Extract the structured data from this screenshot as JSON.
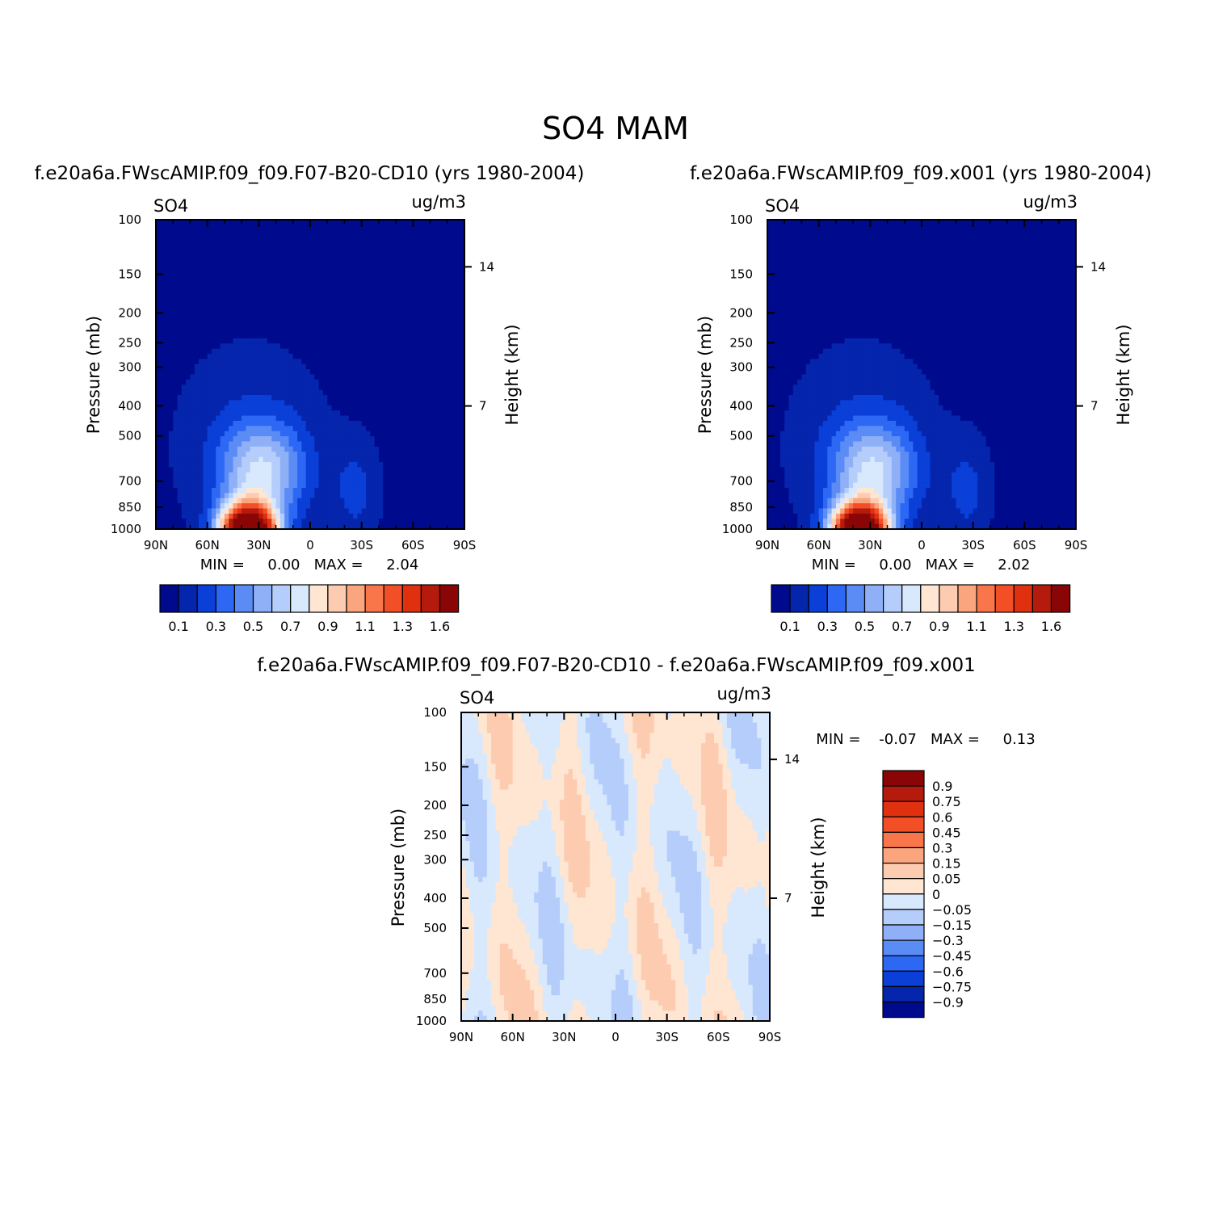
{
  "figure": {
    "title": "SO4  MAM"
  },
  "panels": [
    {
      "id": "case1",
      "subtitle": "f.e20a6a.FWscAMIP.f09_f09.F07-B20-CD10 (yrs 1980-2004)",
      "var_label": "SO4",
      "units_label": "ug/m3",
      "ylabel": "Pressure (mb)",
      "ylabel_right": "Height (km)",
      "minmax": "MIN =     0.00   MAX =     2.04"
    },
    {
      "id": "case2",
      "subtitle": "f.e20a6a.FWscAMIP.f09_f09.x001 (yrs 1980-2004)",
      "var_label": "SO4",
      "units_label": "ug/m3",
      "ylabel": "Pressure (mb)",
      "ylabel_right": "Height (km)",
      "minmax": "MIN =     0.00   MAX =     2.02"
    },
    {
      "id": "diff",
      "subtitle": "f.e20a6a.FWscAMIP.f09_f09.F07-B20-CD10 - f.e20a6a.FWscAMIP.f09_f09.x001",
      "var_label": "SO4",
      "units_label": "ug/m3",
      "ylabel": "Pressure (mb)",
      "ylabel_right": "Height (km)",
      "minmax": "MIN =    -0.07   MAX =     0.13"
    }
  ],
  "chart_data": [
    {
      "type": "heatmap",
      "title": "f.e20a6a.FWscAMIP.f09_f09.F07-B20-CD10 (yrs 1980-2004)",
      "xlabel": "",
      "ylabel": "Pressure (mb)",
      "ylabel_right": "Height (km)",
      "x_ticks": [
        "90N",
        "60N",
        "30N",
        "0",
        "30S",
        "60S",
        "90S"
      ],
      "x_values": [
        90,
        60,
        30,
        0,
        -30,
        -60,
        -90
      ],
      "y_ticks": [
        100,
        150,
        200,
        250,
        300,
        400,
        500,
        700,
        850,
        1000
      ],
      "y_scale": "log",
      "y_range": [
        100,
        1000
      ],
      "y_right_ticks": [
        14,
        7
      ],
      "y_right_tick_pressures": [
        142,
        400
      ],
      "contour_levels": [
        0.1,
        0.2,
        0.3,
        0.4,
        0.5,
        0.6,
        0.7,
        0.8,
        0.9,
        1.0,
        1.1,
        1.2,
        1.3,
        1.4,
        1.6
      ],
      "colorbar_labels": [
        "0.1",
        "0.3",
        "0.5",
        "0.7",
        "0.9",
        "1.1",
        "1.3",
        "1.6"
      ],
      "colors": [
        "#000a8c",
        "#0525ad",
        "#0a3fd8",
        "#2d68f5",
        "#5b8cf5",
        "#8fb0f7",
        "#b5cdfa",
        "#d8e8fd",
        "#fee6d2",
        "#fdcbb0",
        "#fba57e",
        "#f8764a",
        "#f24f27",
        "#df3010",
        "#b51b0c",
        "#8a0606"
      ],
      "min": 0.0,
      "max": 2.04,
      "max_location": {
        "lat": 36,
        "pressure_mb": 930
      }
    },
    {
      "type": "heatmap",
      "title": "f.e20a6a.FWscAMIP.f09_f09.x001 (yrs 1980-2004)",
      "xlabel": "",
      "ylabel": "Pressure (mb)",
      "ylabel_right": "Height (km)",
      "x_ticks": [
        "90N",
        "60N",
        "30N",
        "0",
        "30S",
        "60S",
        "90S"
      ],
      "x_values": [
        90,
        60,
        30,
        0,
        -30,
        -60,
        -90
      ],
      "y_ticks": [
        100,
        150,
        200,
        250,
        300,
        400,
        500,
        700,
        850,
        1000
      ],
      "y_scale": "log",
      "y_range": [
        100,
        1000
      ],
      "y_right_ticks": [
        14,
        7
      ],
      "y_right_tick_pressures": [
        142,
        400
      ],
      "contour_levels": [
        0.1,
        0.2,
        0.3,
        0.4,
        0.5,
        0.6,
        0.7,
        0.8,
        0.9,
        1.0,
        1.1,
        1.2,
        1.3,
        1.4,
        1.6
      ],
      "colorbar_labels": [
        "0.1",
        "0.3",
        "0.5",
        "0.7",
        "0.9",
        "1.1",
        "1.3",
        "1.6"
      ],
      "colors": [
        "#000a8c",
        "#0525ad",
        "#0a3fd8",
        "#2d68f5",
        "#5b8cf5",
        "#8fb0f7",
        "#b5cdfa",
        "#d8e8fd",
        "#fee6d2",
        "#fdcbb0",
        "#fba57e",
        "#f8764a",
        "#f24f27",
        "#df3010",
        "#b51b0c",
        "#8a0606"
      ],
      "min": 0.0,
      "max": 2.02,
      "max_location": {
        "lat": 36,
        "pressure_mb": 930
      }
    },
    {
      "type": "heatmap",
      "title": "f.e20a6a.FWscAMIP.f09_f09.F07-B20-CD10 - f.e20a6a.FWscAMIP.f09_f09.x001",
      "xlabel": "",
      "ylabel": "Pressure (mb)",
      "ylabel_right": "Height (km)",
      "x_ticks": [
        "90N",
        "60N",
        "30N",
        "0",
        "30S",
        "60S",
        "90S"
      ],
      "x_values": [
        90,
        60,
        30,
        0,
        -30,
        -60,
        -90
      ],
      "y_ticks": [
        100,
        150,
        200,
        250,
        300,
        400,
        500,
        700,
        850,
        1000
      ],
      "y_scale": "log",
      "y_range": [
        100,
        1000
      ],
      "y_right_ticks": [
        14,
        7
      ],
      "y_right_tick_pressures": [
        142,
        400
      ],
      "contour_levels": [
        -0.9,
        -0.75,
        -0.6,
        -0.45,
        -0.3,
        -0.15,
        -0.05,
        0,
        0.05,
        0.15,
        0.3,
        0.45,
        0.6,
        0.75,
        0.9
      ],
      "colorbar_labels": [
        "0.9",
        "0.75",
        "0.6",
        "0.45",
        "0.3",
        "0.15",
        "0.05",
        "0",
        "-0.05",
        "-0.15",
        "-0.3",
        "-0.45",
        "-0.6",
        "-0.75",
        "-0.9"
      ],
      "colors": [
        "#000a8c",
        "#0525ad",
        "#0a3fd8",
        "#2d68f5",
        "#5b8cf5",
        "#8fb0f7",
        "#b5cdfa",
        "#d8e8fd",
        "#fee6d2",
        "#fdcbb0",
        "#fba57e",
        "#f8764a",
        "#f24f27",
        "#df3010",
        "#b51b0c",
        "#8a0606"
      ],
      "min": -0.07,
      "max": 0.13,
      "colorbar_orientation": "vertical"
    }
  ]
}
